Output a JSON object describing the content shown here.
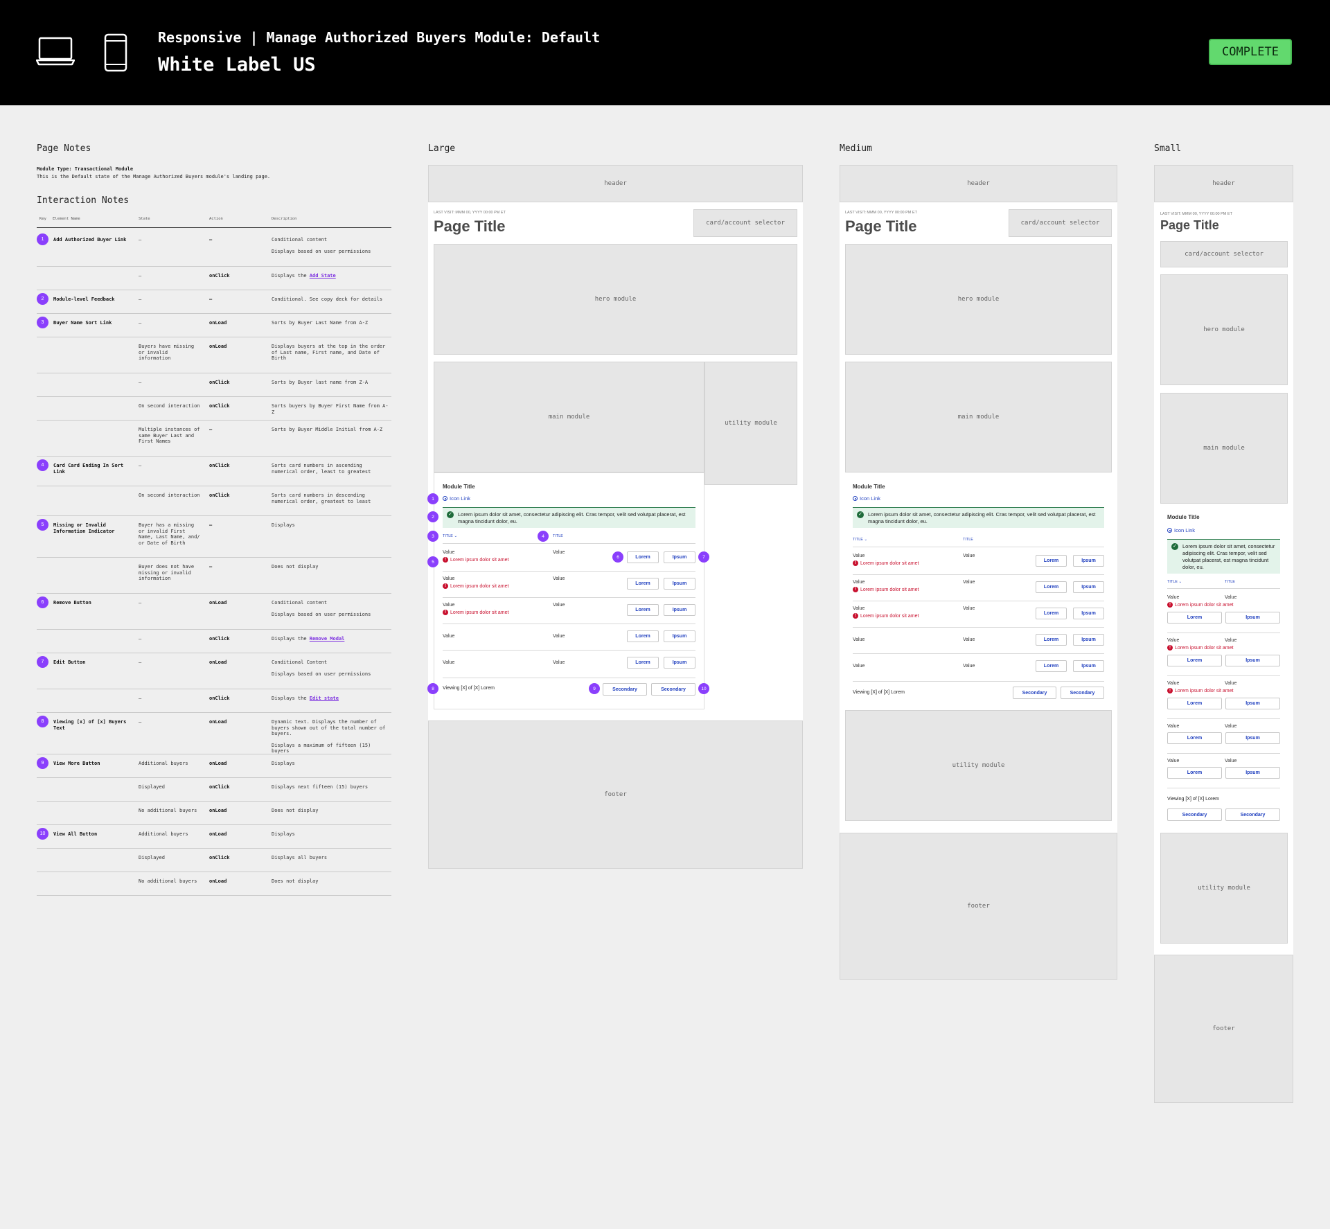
{
  "header": {
    "subtitle": "Responsive | Manage Authorized Buyers Module: Default",
    "title": "White Label US",
    "status": "COMPLETE",
    "status_color": "#62d96e",
    "device_icons": [
      "laptop-icon",
      "phone-icon"
    ]
  },
  "page_notes": {
    "heading": "Page Notes",
    "module_type": "Module Type: Transactional Module",
    "description": "This is the Default state of the Manage Authorized Buyers module's landing page."
  },
  "interaction_notes": {
    "heading": "Interaction Notes",
    "columns": [
      "Key",
      "Element Name",
      "State",
      "Action",
      "Description"
    ],
    "rows": [
      {
        "key": "1",
        "name": "Add Authorized Buyer Link",
        "state": "–",
        "action": "–",
        "desc": "Conditional content",
        "desc2": "Displays based on user permissions"
      },
      {
        "key": "",
        "name": "",
        "state": "–",
        "action": "onClick",
        "desc": "Displays the ",
        "link": "Add State"
      },
      {
        "key": "2",
        "name": "Module-level Feedback",
        "state": "–",
        "action": "–",
        "desc": "Conditional. See copy deck for details"
      },
      {
        "key": "3",
        "name": "Buyer Name Sort Link",
        "state": "–",
        "action": "onLoad",
        "desc": "Sorts by Buyer Last Name from A-Z"
      },
      {
        "key": "",
        "name": "",
        "state": "Buyers have missing or invalid information",
        "action": "onLoad",
        "desc": "Displays buyers at the top in the order of Last name, First name, and Date of Birth"
      },
      {
        "key": "",
        "name": "",
        "state": "–",
        "action": "onClick",
        "desc": "Sorts by Buyer last name from Z-A"
      },
      {
        "key": "",
        "name": "",
        "state": "On second interaction",
        "action": "onClick",
        "desc": "Sorts buyers by Buyer First Name from A-Z"
      },
      {
        "key": "",
        "name": "",
        "state": "Multiple instances of same Buyer Last and First Names",
        "action": "–",
        "desc": "Sorts by Buyer Middle Initial from A-Z"
      },
      {
        "key": "4",
        "name": "Card Card Ending In Sort Link",
        "state": "–",
        "action": "onClick",
        "desc": "Sorts card numbers in ascending numerical order, least to greatest"
      },
      {
        "key": "",
        "name": "",
        "state": "On second interaction",
        "action": "onClick",
        "desc": "Sorts card numbers in descending numerical order, greatest to least"
      },
      {
        "key": "5",
        "name": "Missing or Invalid Information Indicator",
        "state": "Buyer has a missing or invalid First Name, Last Name, and/ or Date of Birth",
        "action": "–",
        "desc": "Displays"
      },
      {
        "key": "",
        "name": "",
        "state": "Buyer does not have missing or invalid information",
        "action": "–",
        "desc": "Does not display"
      },
      {
        "key": "6",
        "name": "Remove Button",
        "state": "–",
        "action": "onLoad",
        "desc": "Conditional content",
        "desc2": "Displays based on user permissions"
      },
      {
        "key": "",
        "name": "",
        "state": "–",
        "action": "onClick",
        "desc": "Displays the ",
        "link": "Remove Modal"
      },
      {
        "key": "7",
        "name": "Edit Button",
        "state": "–",
        "action": "onLoad",
        "desc": "Conditional Content",
        "desc2": "Displays based on user permissions"
      },
      {
        "key": "",
        "name": "",
        "state": "–",
        "action": "onClick",
        "desc": "Displays the ",
        "link": "Edit state"
      },
      {
        "key": "8",
        "name": "Viewing [x] of [x] Buyers Text",
        "state": "–",
        "action": "onLoad",
        "desc": "Dynamic text. Displays the number of buyers shown out of the total number of buyers.",
        "desc2": "Displays a maximum of fifteen (15) buyers"
      },
      {
        "key": "9",
        "name": "View More Button",
        "state": "Additional buyers",
        "action": "onLoad",
        "desc": "Displays"
      },
      {
        "key": "",
        "name": "",
        "state": "Displayed",
        "action": "onClick",
        "desc": "Displays next fifteen (15) buyers"
      },
      {
        "key": "",
        "name": "",
        "state": "No additional buyers",
        "action": "onLoad",
        "desc": "Does not display"
      },
      {
        "key": "10",
        "name": "View All Button",
        "state": "Additional buyers",
        "action": "onLoad",
        "desc": "Displays"
      },
      {
        "key": "",
        "name": "",
        "state": "Displayed",
        "action": "onClick",
        "desc": "Displays all buyers"
      },
      {
        "key": "",
        "name": "",
        "state": "No additional buyers",
        "action": "onLoad",
        "desc": "Does not display"
      }
    ]
  },
  "wireframe": {
    "labels": {
      "large": "Large",
      "medium": "Medium",
      "small": "Small"
    },
    "header": "header",
    "last_visit": "LAST VISIT: MMM 00, YYYY 00:00 PM ET",
    "page_title": "Page Title",
    "selector": "card/account selector",
    "hero": "hero module",
    "main": "main module",
    "utility": "utility module",
    "footer": "footer",
    "module_title": "Module Title",
    "icon_link": "Icon Link",
    "feedback": "Lorem ipsum dolor sit amet, consectetur adipiscing elit. Cras tempor, velit sed volutpat placerat, est magna tincidunt dolor, eu.",
    "col1": "TITLE",
    "col2": "TITLE",
    "value": "Value",
    "error": "Lorem ipsum dolor sit amet",
    "btn1": "Lorem",
    "btn2": "Ipsum",
    "viewing": "Viewing [X] of [X] Lorem",
    "secondary": "Secondary",
    "pins": [
      "1",
      "2",
      "3",
      "4",
      "5",
      "6",
      "7",
      "8",
      "9",
      "10"
    ]
  }
}
